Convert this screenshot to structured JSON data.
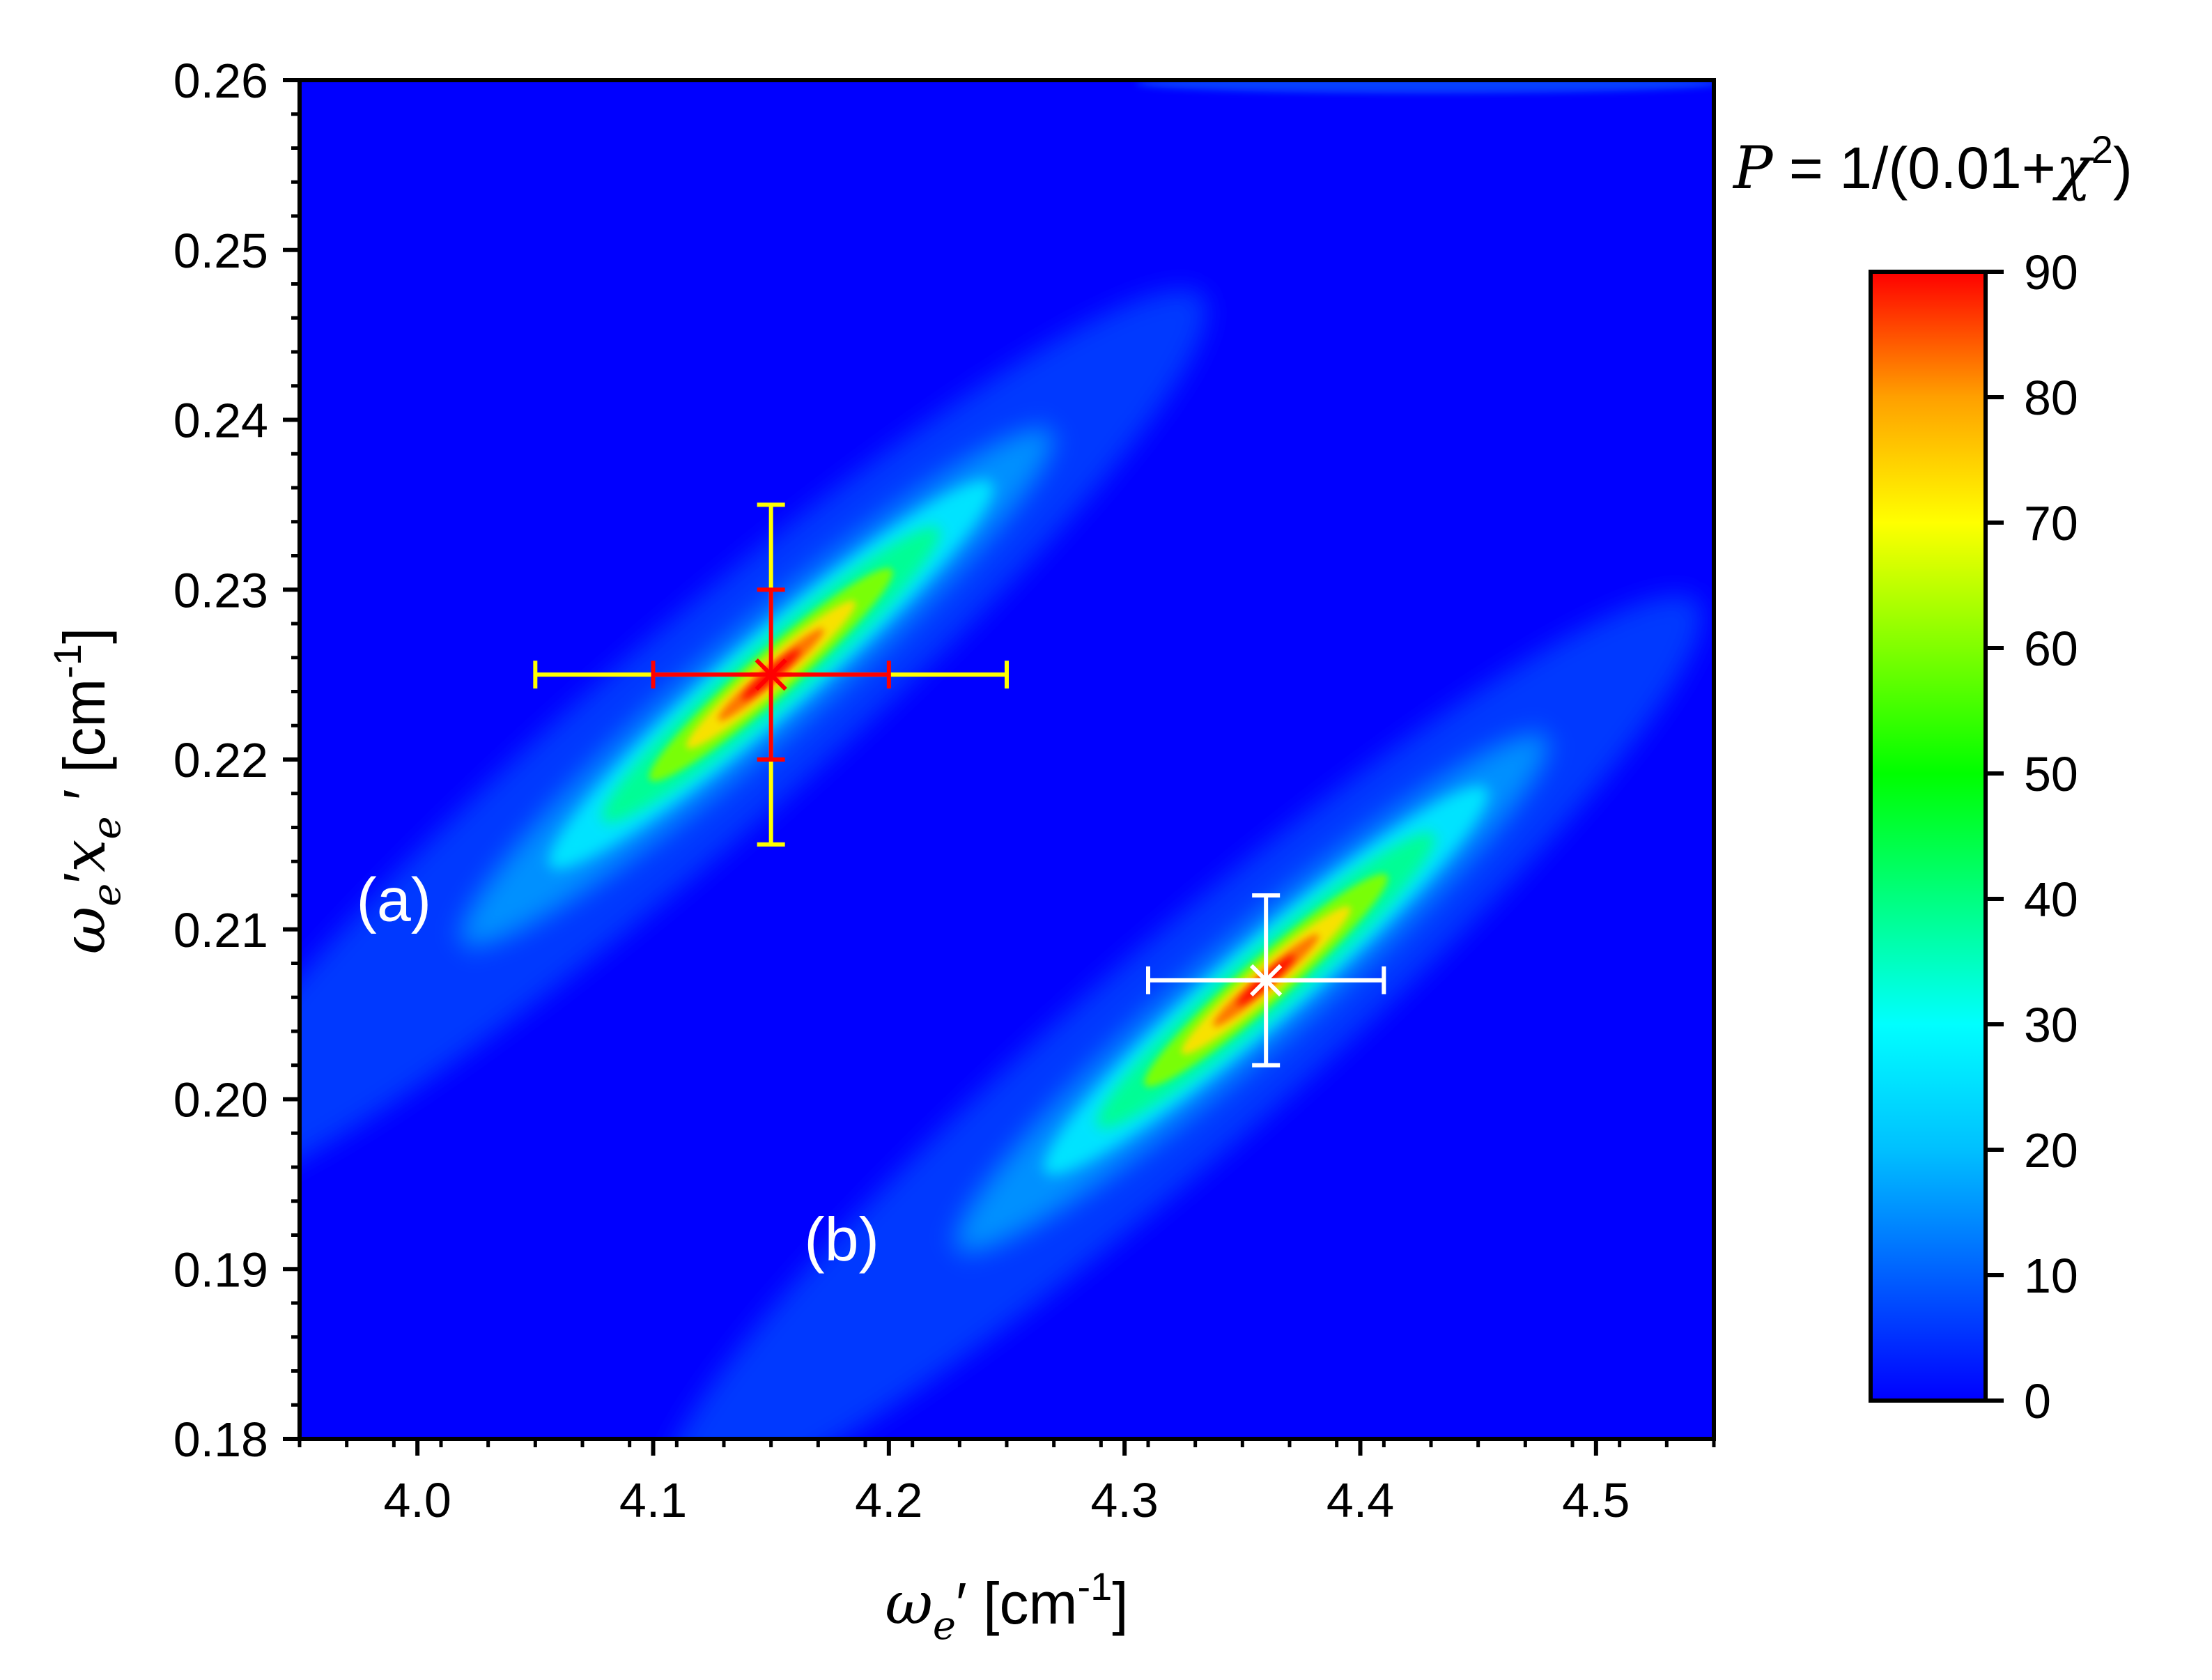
{
  "chart_data": {
    "type": "heatmap",
    "colorbar_title": {
      "prefix_italic": "P",
      "formula_text": " = 1/(0.01+",
      "symbol_italic": "χ",
      "superscript": "2",
      "suffix": ")"
    },
    "xlabel": {
      "symbol": "ω",
      "subscript": "e",
      "prime": "′",
      "unit_open": " [cm",
      "unit_exp": "-1",
      "unit_close": "]"
    },
    "ylabel": {
      "symbol1": "ω",
      "subscript1": "e",
      "prime1": "′",
      "symbol2": "x",
      "subscript2": "e",
      "prime2": " ′",
      "unit_open": " [cm",
      "unit_exp": "-1",
      "unit_close": "]"
    },
    "xlim": [
      3.95,
      4.55
    ],
    "ylim": [
      0.18,
      0.26
    ],
    "x_ticks": [
      "4.0",
      "4.1",
      "4.2",
      "4.3",
      "4.4",
      "4.5"
    ],
    "y_ticks": [
      "0.18",
      "0.19",
      "0.20",
      "0.21",
      "0.22",
      "0.23",
      "0.24",
      "0.25",
      "0.26"
    ],
    "colorbar": {
      "range": [
        0,
        90
      ],
      "ticks": [
        "0",
        "10",
        "20",
        "30",
        "40",
        "50",
        "60",
        "70",
        "80",
        "90"
      ],
      "colormap": [
        "#0000ff",
        "#0060ff",
        "#00c0ff",
        "#00ffff",
        "#00ff80",
        "#00ff00",
        "#80ff00",
        "#ffff00",
        "#ffa000",
        "#ff0000"
      ]
    },
    "regions": [
      {
        "label": "(a)",
        "center_x": 4.15,
        "center_y": 0.225,
        "peak_value": 90,
        "label_x": 3.99,
        "label_y": 0.2105
      },
      {
        "label": "(b)",
        "center_x": 4.36,
        "center_y": 0.207,
        "peak_value": 90,
        "label_x": 4.18,
        "label_y": 0.1905
      }
    ],
    "error_bars": [
      {
        "name": "region-a-outer",
        "color": "#ffff00",
        "x": 4.15,
        "y": 0.225,
        "x_err": [
          4.05,
          4.25
        ],
        "y_err": [
          0.215,
          0.235
        ]
      },
      {
        "name": "region-a-inner",
        "color": "#ff0000",
        "x": 4.15,
        "y": 0.225,
        "x_err": [
          4.1,
          4.2
        ],
        "y_err": [
          0.22,
          0.23
        ]
      },
      {
        "name": "region-b",
        "color": "#ffffff",
        "x": 4.36,
        "y": 0.207,
        "x_err": [
          4.31,
          4.41
        ],
        "y_err": [
          0.202,
          0.212
        ]
      }
    ]
  }
}
